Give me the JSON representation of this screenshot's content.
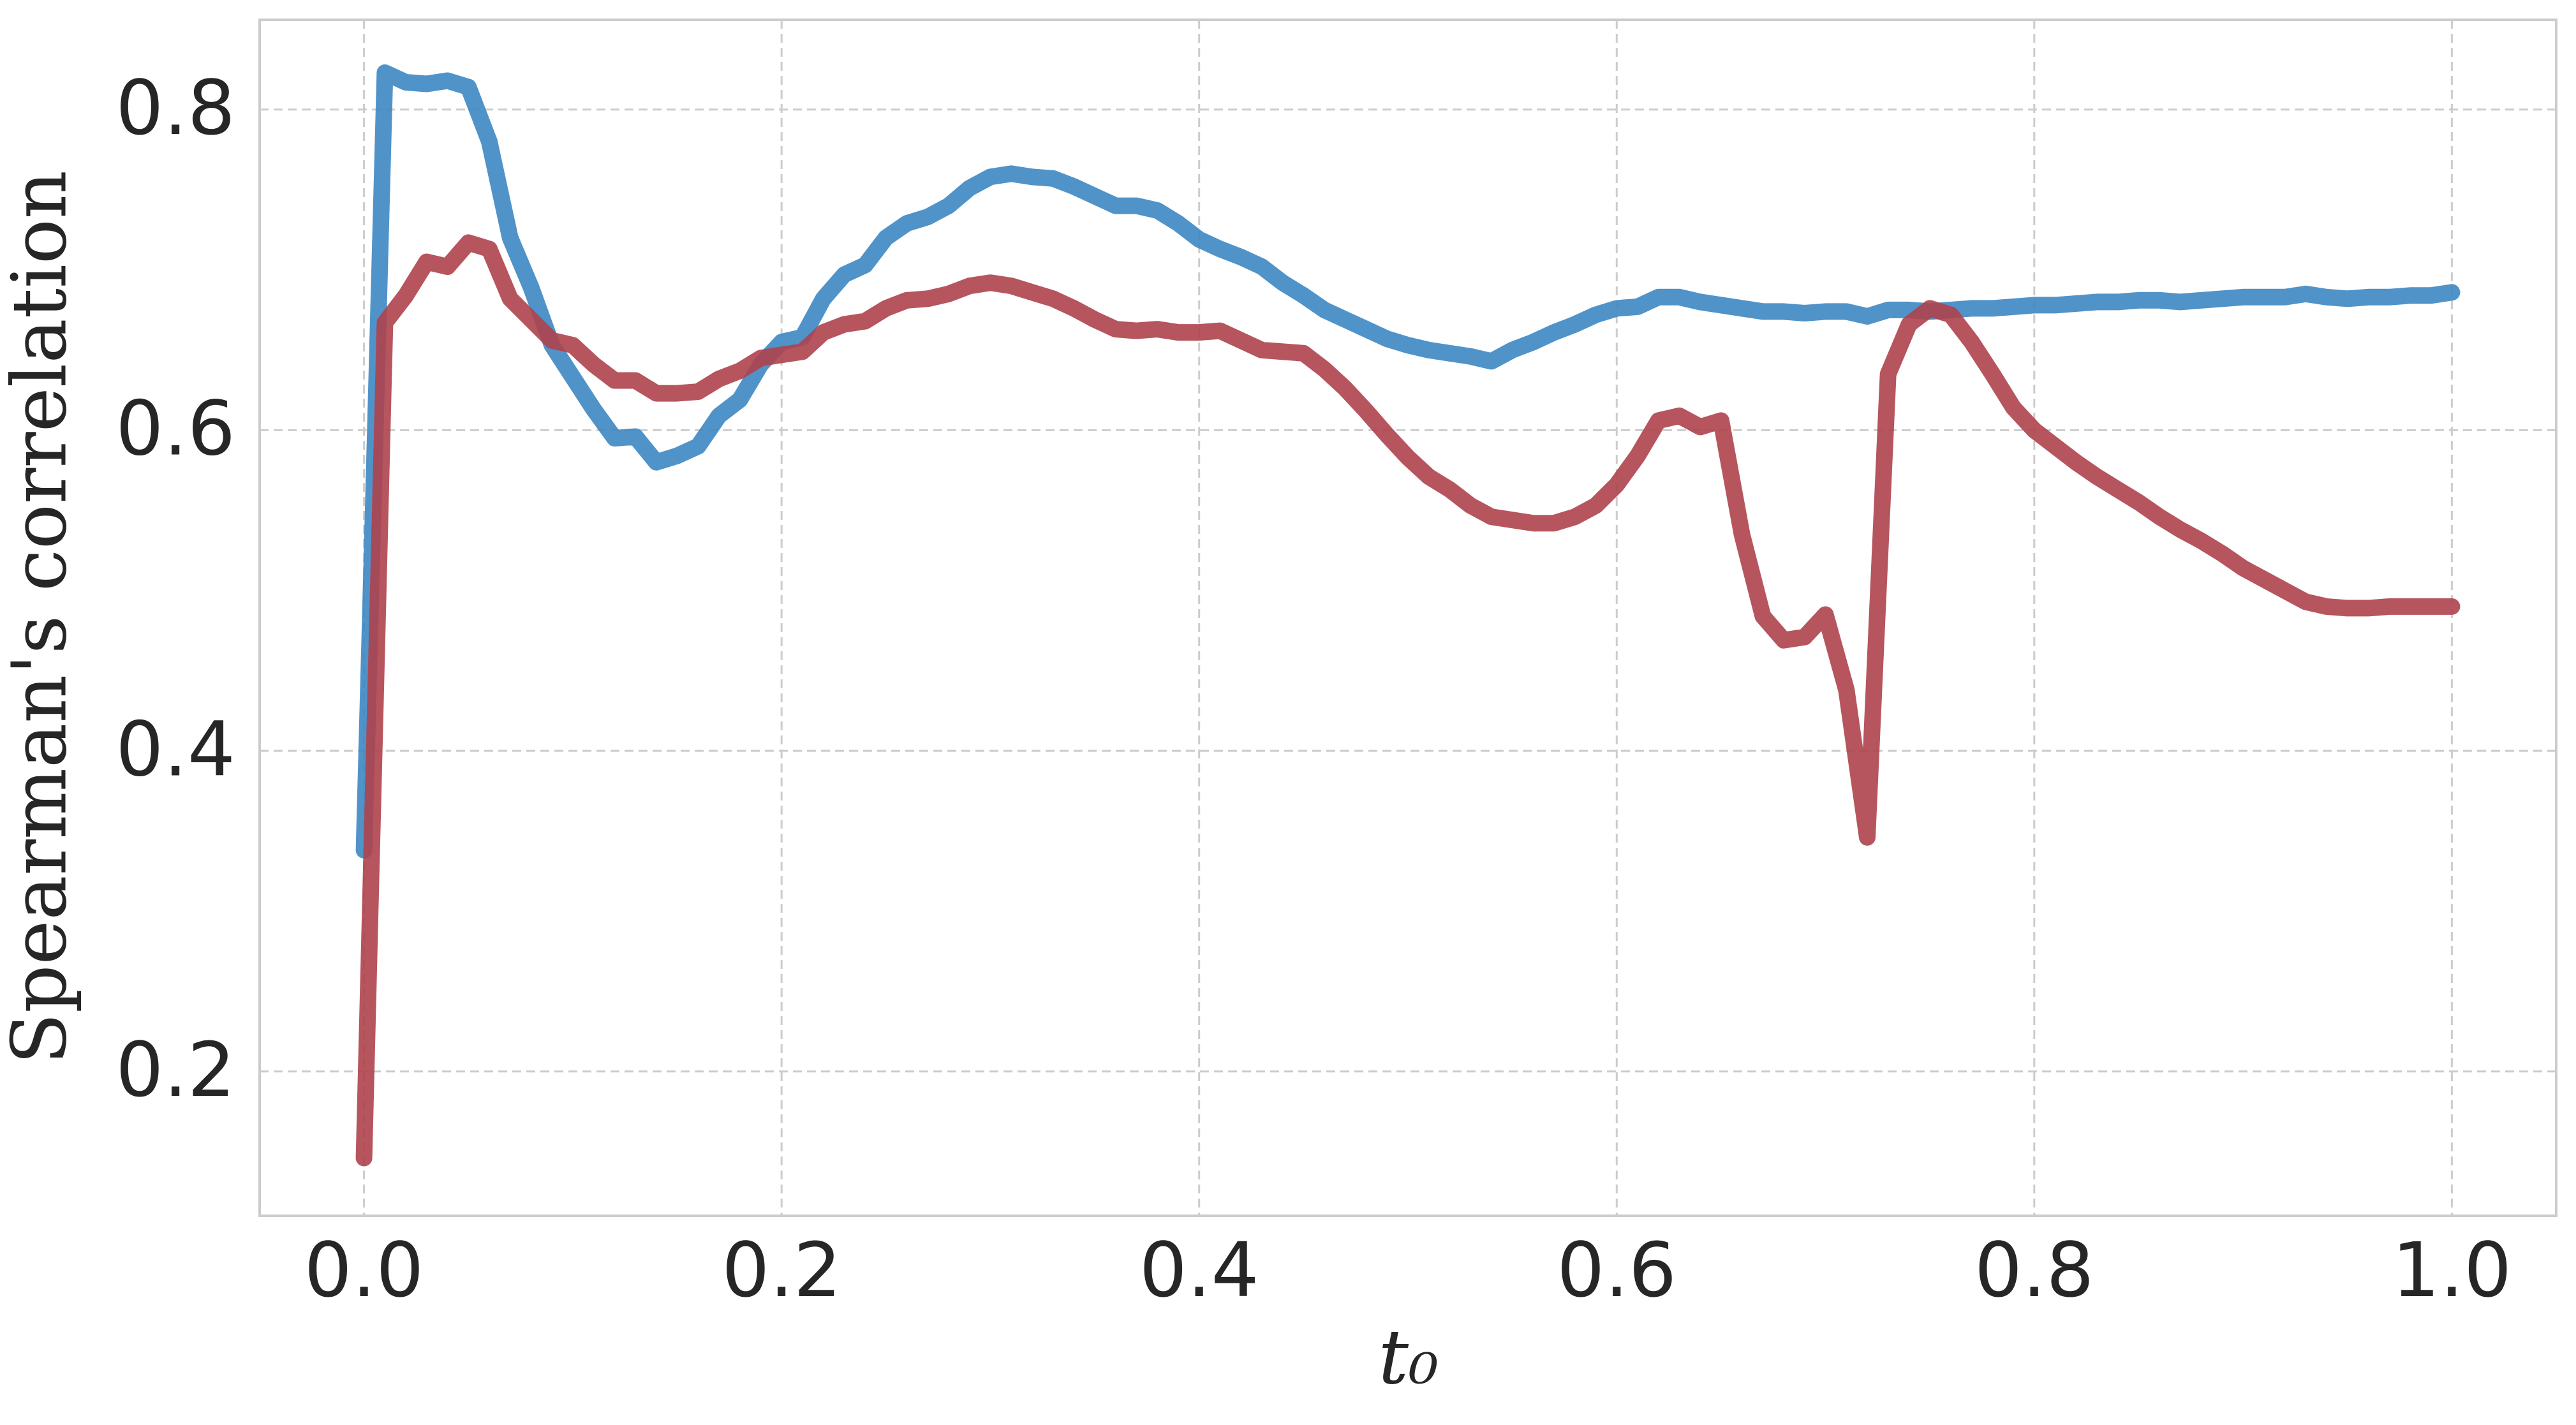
{
  "chart_data": {
    "type": "line",
    "xlabel": "t₀",
    "ylabel": "Spearman's correlation",
    "x": [
      0,
      0.01,
      0.02,
      0.03,
      0.04,
      0.05,
      0.06,
      0.07,
      0.08,
      0.09,
      0.1,
      0.11,
      0.12,
      0.13,
      0.14,
      0.15,
      0.16,
      0.17,
      0.18,
      0.19,
      0.2,
      0.21,
      0.22,
      0.23,
      0.24,
      0.25,
      0.26,
      0.27,
      0.28,
      0.29,
      0.3,
      0.31,
      0.32,
      0.33,
      0.34,
      0.35,
      0.36,
      0.37,
      0.38,
      0.39,
      0.4,
      0.41,
      0.42,
      0.43,
      0.44,
      0.45,
      0.46,
      0.47,
      0.48,
      0.49,
      0.5,
      0.51,
      0.52,
      0.53,
      0.54,
      0.55,
      0.56,
      0.57,
      0.58,
      0.59,
      0.6,
      0.61,
      0.62,
      0.63,
      0.64,
      0.65,
      0.66,
      0.67,
      0.68,
      0.69,
      0.7,
      0.71,
      0.72,
      0.73,
      0.74,
      0.75,
      0.76,
      0.77,
      0.78,
      0.79,
      0.8,
      0.81,
      0.82,
      0.83,
      0.84,
      0.85,
      0.86,
      0.87,
      0.88,
      0.89,
      0.9,
      0.91,
      0.92,
      0.93,
      0.94,
      0.95,
      0.96,
      0.97,
      0.98,
      0.99,
      1.0
    ],
    "series": [
      {
        "color": "#3d87c3",
        "values": [
          0.338,
          0.823,
          0.817,
          0.816,
          0.818,
          0.814,
          0.78,
          0.72,
          0.689,
          0.653,
          0.633,
          0.613,
          0.595,
          0.596,
          0.58,
          0.584,
          0.59,
          0.609,
          0.619,
          0.641,
          0.655,
          0.658,
          0.682,
          0.697,
          0.703,
          0.72,
          0.729,
          0.733,
          0.74,
          0.751,
          0.758,
          0.76,
          0.758,
          0.757,
          0.752,
          0.746,
          0.74,
          0.74,
          0.737,
          0.729,
          0.719,
          0.713,
          0.708,
          0.702,
          0.692,
          0.684,
          0.675,
          0.669,
          0.663,
          0.657,
          0.653,
          0.65,
          0.648,
          0.646,
          0.643,
          0.65,
          0.655,
          0.661,
          0.666,
          0.672,
          0.676,
          0.677,
          0.683,
          0.683,
          0.68,
          0.678,
          0.676,
          0.674,
          0.674,
          0.673,
          0.674,
          0.674,
          0.671,
          0.675,
          0.675,
          0.674,
          0.675,
          0.676,
          0.676,
          0.677,
          0.678,
          0.678,
          0.679,
          0.68,
          0.68,
          0.681,
          0.681,
          0.68,
          0.681,
          0.682,
          0.683,
          0.683,
          0.683,
          0.685,
          0.683,
          0.682,
          0.683,
          0.683,
          0.684,
          0.684,
          0.686
        ]
      },
      {
        "color": "#ae434c",
        "values": [
          0.146,
          0.667,
          0.684,
          0.705,
          0.702,
          0.717,
          0.713,
          0.682,
          0.669,
          0.656,
          0.653,
          0.641,
          0.631,
          0.631,
          0.623,
          0.623,
          0.624,
          0.632,
          0.637,
          0.645,
          0.647,
          0.649,
          0.661,
          0.666,
          0.668,
          0.676,
          0.681,
          0.682,
          0.685,
          0.69,
          0.692,
          0.69,
          0.686,
          0.682,
          0.676,
          0.669,
          0.663,
          0.662,
          0.663,
          0.661,
          0.661,
          0.662,
          0.656,
          0.65,
          0.649,
          0.648,
          0.638,
          0.626,
          0.612,
          0.597,
          0.583,
          0.571,
          0.563,
          0.553,
          0.546,
          0.544,
          0.542,
          0.542,
          0.546,
          0.553,
          0.566,
          0.584,
          0.606,
          0.609,
          0.602,
          0.606,
          0.535,
          0.484,
          0.469,
          0.471,
          0.485,
          0.438,
          0.346,
          0.635,
          0.666,
          0.676,
          0.672,
          0.655,
          0.635,
          0.614,
          0.6,
          0.59,
          0.58,
          0.571,
          0.563,
          0.555,
          0.546,
          0.538,
          0.531,
          0.523,
          0.514,
          0.507,
          0.5,
          0.493,
          0.49,
          0.489,
          0.489,
          0.49,
          0.49,
          0.49,
          0.49
        ]
      }
    ],
    "xlim": [
      -0.05,
      1.05
    ],
    "ylim": [
      0.11,
      0.856
    ],
    "xticks": [
      {
        "value": 0,
        "label": "0.0"
      },
      0.2,
      0.4,
      0.6,
      0.8,
      {
        "value": 1,
        "label": "1.0"
      }
    ],
    "yticks": [
      0.2,
      0.4,
      0.6,
      0.8
    ],
    "grid": true
  }
}
